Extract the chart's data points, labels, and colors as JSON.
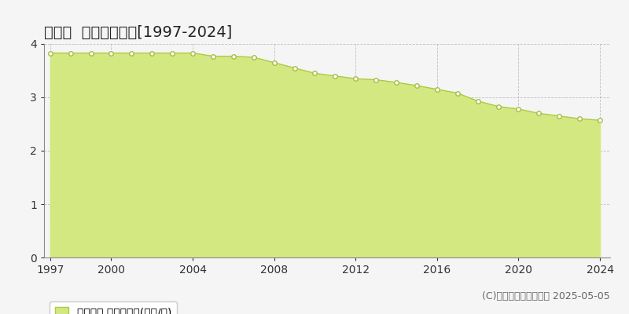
{
  "title": "仁木町  基準地価推移[1997-2024]",
  "years": [
    1997,
    1998,
    1999,
    2000,
    2001,
    2002,
    2003,
    2004,
    2005,
    2006,
    2007,
    2008,
    2009,
    2010,
    2011,
    2012,
    2013,
    2014,
    2015,
    2016,
    2017,
    2018,
    2019,
    2020,
    2021,
    2022,
    2023,
    2024
  ],
  "values": [
    3.83,
    3.83,
    3.83,
    3.83,
    3.83,
    3.83,
    3.83,
    3.83,
    3.77,
    3.77,
    3.75,
    3.65,
    3.55,
    3.45,
    3.4,
    3.35,
    3.33,
    3.28,
    3.22,
    3.15,
    3.08,
    2.93,
    2.83,
    2.78,
    2.7,
    2.65,
    2.6,
    2.57
  ],
  "line_color": "#aacc44",
  "fill_color": "#d4e882",
  "marker_color": "#ffffff",
  "marker_edge_color": "#aabb44",
  "grid_color": "#aaaaaa",
  "background_color": "#f5f5f5",
  "plot_bg_color": "#f5f5f5",
  "ylim": [
    0,
    4
  ],
  "yticks": [
    0,
    1,
    2,
    3,
    4
  ],
  "xticks": [
    1997,
    2000,
    2004,
    2008,
    2012,
    2016,
    2020,
    2024
  ],
  "legend_label": "基準地価 平均坪単価(万円/坪)",
  "copyright_text": "(C)土地価格ドットコム 2025-05-05",
  "title_fontsize": 14,
  "tick_fontsize": 10,
  "legend_fontsize": 10,
  "copyright_fontsize": 9
}
